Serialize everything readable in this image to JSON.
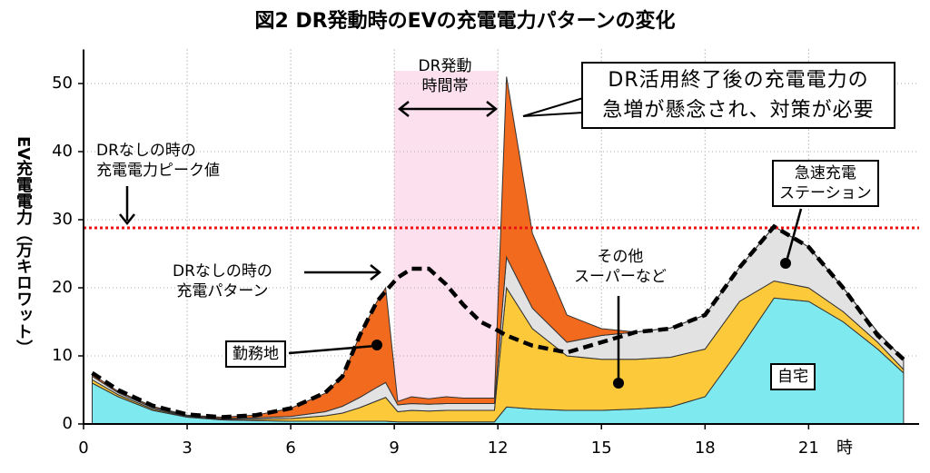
{
  "chart_data": {
    "type": "stacked_area",
    "title": "図2 DR発動時のEVの充電電力パターンの変化",
    "ylabel": "EV充電電力（万キロワット）",
    "xunit": "時",
    "xlim": [
      0,
      24.2
    ],
    "ylim": [
      0,
      55
    ],
    "xticks": [
      0,
      3,
      6,
      9,
      12,
      15,
      18,
      21
    ],
    "yticks": [
      0,
      10,
      20,
      30,
      40,
      50
    ],
    "grid": true,
    "x": [
      0.25,
      1,
      2,
      3,
      4,
      5,
      6,
      7,
      7.5,
      8,
      8.5,
      8.75,
      9.1,
      9.5,
      10,
      10.5,
      11,
      11.5,
      11.9,
      12.25,
      13,
      14,
      15,
      16,
      17,
      18,
      19,
      20,
      21,
      22,
      23,
      23.75
    ],
    "series": [
      {
        "name": "自宅",
        "color": "#7eeaf0",
        "values": [
          6,
          4,
          2,
          1,
          0.6,
          0.5,
          0.4,
          0.4,
          0.4,
          0.4,
          0.4,
          0.4,
          0.3,
          0.3,
          0.3,
          0.3,
          0.3,
          0.3,
          0.3,
          2.5,
          2.2,
          2,
          2,
          2.2,
          2.5,
          4,
          11,
          18.5,
          18,
          15,
          11,
          7.5
        ]
      },
      {
        "name": "その他\nスーパーなど",
        "color": "#fcc93a",
        "values": [
          0.5,
          0.3,
          0.2,
          0.1,
          0.1,
          0.2,
          0.4,
          0.8,
          1.2,
          2,
          3,
          3.5,
          1.5,
          1.7,
          1.6,
          1.7,
          1.7,
          1.7,
          1.7,
          17.5,
          11.8,
          8,
          7.5,
          7.3,
          7.3,
          7,
          7,
          2.5,
          2,
          1.5,
          1,
          0.5
        ]
      },
      {
        "name": "急速充電\nステーション",
        "color": "#e2e2e2",
        "values": [
          0.5,
          0.3,
          0.2,
          0.1,
          0.1,
          0.2,
          0.3,
          0.6,
          1,
          1.5,
          2,
          2.2,
          1,
          1,
          1,
          1,
          1,
          1,
          1,
          4.5,
          3,
          2,
          3.5,
          4,
          4.3,
          5,
          5,
          8,
          6,
          3.5,
          1.5,
          1.5
        ]
      },
      {
        "name": "勤務地",
        "color": "#f26a1e",
        "values": [
          0.3,
          0.2,
          0.2,
          0.1,
          0.2,
          0.4,
          1.2,
          2.7,
          4.4,
          9.1,
          12.6,
          13.9,
          0.5,
          1,
          0.8,
          1,
          0.8,
          0.8,
          0.8,
          26.5,
          11,
          4,
          1,
          0,
          0,
          0,
          0,
          0,
          0,
          0,
          0,
          0
        ]
      }
    ],
    "reference": {
      "name": "DRなしの時の\n充電パターン",
      "color": "#000000",
      "values": [
        7.5,
        5,
        2.7,
        1.4,
        1,
        1.3,
        2.3,
        4.6,
        7,
        13,
        18,
        19.5,
        21.5,
        22.8,
        22.8,
        20.5,
        17.5,
        15,
        14,
        13,
        11.5,
        10.5,
        12,
        13.5,
        14,
        16,
        23,
        29,
        26,
        20,
        13,
        9.5
      ]
    },
    "peak_line": {
      "label": "DRなしの時の\n充電電力ピーク値",
      "value": 28.8,
      "color": "#ee1111"
    },
    "dr_band": {
      "label": "DR発動\n時間帯",
      "range": [
        9,
        12
      ],
      "color": "#fde0ee"
    },
    "annotation": "DR活用終了後の充電電力の\n急増が懸念され、対策が必要"
  }
}
